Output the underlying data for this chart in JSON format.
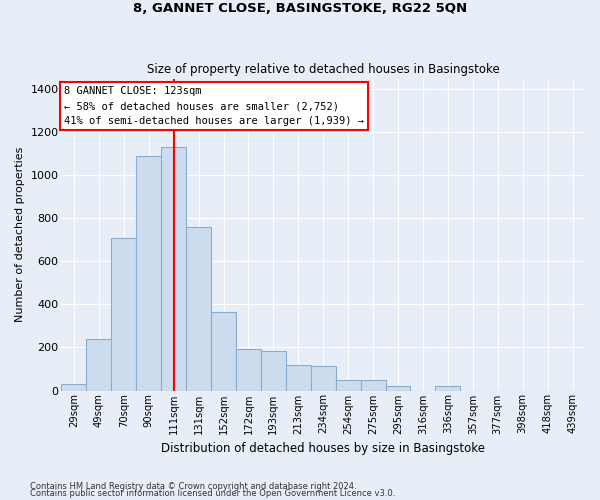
{
  "title": "8, GANNET CLOSE, BASINGSTOKE, RG22 5QN",
  "subtitle": "Size of property relative to detached houses in Basingstoke",
  "xlabel": "Distribution of detached houses by size in Basingstoke",
  "ylabel": "Number of detached properties",
  "bar_color": "#ccdcee",
  "bar_edge_color": "#8aadce",
  "background_color": "#e8eef8",
  "grid_color": "#ffffff",
  "bin_labels": [
    "29sqm",
    "49sqm",
    "70sqm",
    "90sqm",
    "111sqm",
    "131sqm",
    "152sqm",
    "172sqm",
    "193sqm",
    "213sqm",
    "234sqm",
    "254sqm",
    "275sqm",
    "295sqm",
    "316sqm",
    "336sqm",
    "357sqm",
    "377sqm",
    "398sqm",
    "418sqm",
    "439sqm"
  ],
  "bar_heights": [
    28,
    240,
    710,
    1090,
    1130,
    760,
    365,
    195,
    185,
    120,
    115,
    50,
    50,
    20,
    0,
    20,
    0,
    0,
    0,
    0,
    0
  ],
  "ylim": [
    0,
    1450
  ],
  "yticks": [
    0,
    200,
    400,
    600,
    800,
    1000,
    1200,
    1400
  ],
  "annotation_text": "8 GANNET CLOSE: 123sqm\n← 58% of detached houses are smaller (2,752)\n41% of semi-detached houses are larger (1,939) →",
  "red_line_bin_idx": 4.5,
  "footnote1": "Contains HM Land Registry data © Crown copyright and database right 2024.",
  "footnote2": "Contains public sector information licensed under the Open Government Licence v3.0."
}
